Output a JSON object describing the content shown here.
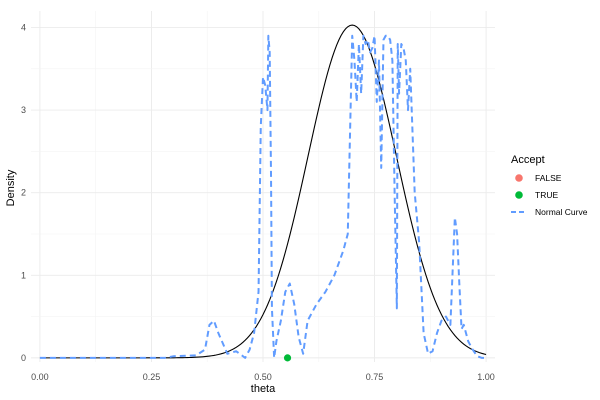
{
  "chart_data": {
    "type": "line",
    "xlabel": "theta",
    "ylabel": "Density",
    "xlim": [
      -0.02,
      1.02
    ],
    "ylim": [
      -0.05,
      4.2
    ],
    "x_ticks": [
      0.0,
      0.25,
      0.5,
      0.75,
      1.0
    ],
    "x_tick_labels": [
      "0.00",
      "0.25",
      "0.50",
      "0.75",
      "1.00"
    ],
    "y_ticks": [
      0,
      1,
      2,
      3,
      4
    ],
    "y_tick_labels": [
      "0",
      "1",
      "2",
      "3",
      "4"
    ],
    "grid": true,
    "legend": {
      "title": "Accept",
      "position": "right",
      "entries": [
        {
          "label": "FALSE",
          "kind": "point",
          "color": "#F8766D"
        },
        {
          "label": "TRUE",
          "kind": "point",
          "color": "#00BA38"
        },
        {
          "label": "Normal Curve",
          "kind": "dashed-line",
          "color": "#619CFF"
        }
      ]
    },
    "normal_curve": {
      "mean": 0.7,
      "sd": 0.099,
      "color": "#000000"
    },
    "density_series": {
      "color": "#619CFF",
      "x": [
        0.0,
        0.1,
        0.2,
        0.28,
        0.3,
        0.35,
        0.37,
        0.38,
        0.39,
        0.4,
        0.42,
        0.44,
        0.46,
        0.47,
        0.48,
        0.49,
        0.495,
        0.5,
        0.505,
        0.51,
        0.512,
        0.515,
        0.518,
        0.52,
        0.525,
        0.53,
        0.54,
        0.55,
        0.56,
        0.57,
        0.58,
        0.59,
        0.6,
        0.62,
        0.64,
        0.66,
        0.68,
        0.69,
        0.7,
        0.705,
        0.71,
        0.715,
        0.72,
        0.725,
        0.73,
        0.735,
        0.74,
        0.745,
        0.75,
        0.755,
        0.76,
        0.765,
        0.77,
        0.775,
        0.78,
        0.785,
        0.79,
        0.795,
        0.8,
        0.802,
        0.805,
        0.81,
        0.815,
        0.82,
        0.825,
        0.83,
        0.84,
        0.85,
        0.86,
        0.87,
        0.88,
        0.89,
        0.9,
        0.91,
        0.92,
        0.93,
        0.935,
        0.94,
        0.945,
        0.95,
        0.955,
        0.96,
        0.97,
        0.98,
        0.99,
        1.0
      ],
      "y": [
        0.0,
        0.0,
        0.0,
        0.0,
        0.02,
        0.03,
        0.1,
        0.4,
        0.45,
        0.3,
        0.05,
        0.08,
        0.0,
        0.1,
        0.3,
        0.8,
        2.8,
        3.4,
        3.3,
        3.0,
        3.9,
        3.7,
        2.2,
        0.6,
        0.0,
        0.2,
        0.45,
        0.8,
        0.9,
        0.65,
        0.25,
        0.05,
        0.45,
        0.65,
        0.8,
        1.0,
        1.3,
        1.5,
        3.9,
        3.6,
        3.1,
        3.8,
        3.2,
        3.9,
        3.8,
        3.85,
        3.7,
        3.75,
        3.9,
        3.1,
        3.6,
        2.3,
        3.85,
        3.9,
        3.9,
        3.85,
        3.6,
        2.0,
        0.6,
        3.8,
        3.2,
        3.8,
        3.75,
        3.6,
        3.0,
        3.5,
        2.0,
        1.4,
        0.3,
        0.05,
        0.08,
        0.3,
        0.45,
        0.5,
        0.4,
        1.7,
        1.5,
        0.9,
        0.35,
        0.4,
        0.3,
        0.2,
        0.1,
        0.02,
        0.0,
        0.0
      ]
    },
    "points": [
      {
        "x": 0.555,
        "y": 0.0,
        "accept": "TRUE",
        "color": "#00BA38"
      }
    ]
  }
}
